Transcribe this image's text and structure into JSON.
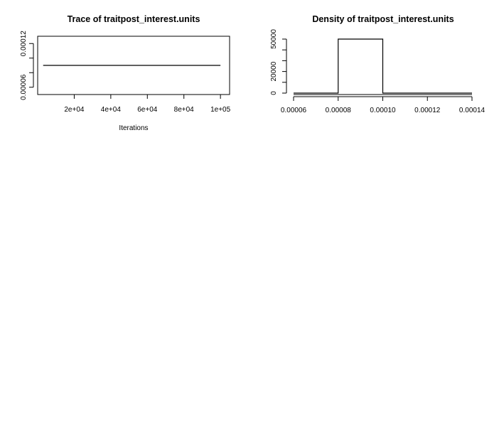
{
  "chart_data": [
    {
      "type": "line",
      "title": "Trace of traitpost_interest.units",
      "xlabel": "Iterations",
      "ylabel": "",
      "xlim": [
        0,
        105000
      ],
      "ylim": [
        5e-05,
        0.00013
      ],
      "x_ticks": [
        20000,
        40000,
        60000,
        80000,
        100000
      ],
      "x_tick_labels": [
        "2e+04",
        "4e+04",
        "6e+04",
        "8e+04",
        "1e+05"
      ],
      "y_ticks": [
        6e-05,
        8e-05,
        0.0001,
        0.00012
      ],
      "y_tick_labels": [
        "0.00006",
        "",
        "",
        "0.00012"
      ],
      "series": [
        {
          "x": [
            3000,
            100000
          ],
          "values": [
            9e-05,
            9e-05
          ]
        }
      ],
      "grid": false,
      "legend": "none",
      "colors": {
        "line": "#000000"
      }
    },
    {
      "type": "area",
      "title": "Density of traitpost_interest.units",
      "xlabel": "",
      "ylabel": "",
      "xlim": [
        6e-05,
        0.00014
      ],
      "ylim": [
        0,
        50000
      ],
      "x_ticks": [
        6e-05,
        8e-05,
        0.0001,
        0.00012,
        0.00014
      ],
      "x_tick_labels": [
        "0.00006",
        "0.00008",
        "0.00010",
        "0.00012",
        "0.00014"
      ],
      "y_ticks": [
        0,
        10000,
        20000,
        30000,
        40000,
        50000
      ],
      "y_tick_labels": [
        "0",
        "",
        "20000",
        "",
        "",
        "50000"
      ],
      "series": [
        {
          "x": [
            6e-05,
            8e-05,
            8e-05,
            0.0001,
            0.0001,
            0.00014
          ],
          "values": [
            0,
            0,
            50000,
            50000,
            0,
            0
          ]
        }
      ],
      "grid": false,
      "legend": "none",
      "colors": {
        "line": "#000000"
      }
    }
  ]
}
